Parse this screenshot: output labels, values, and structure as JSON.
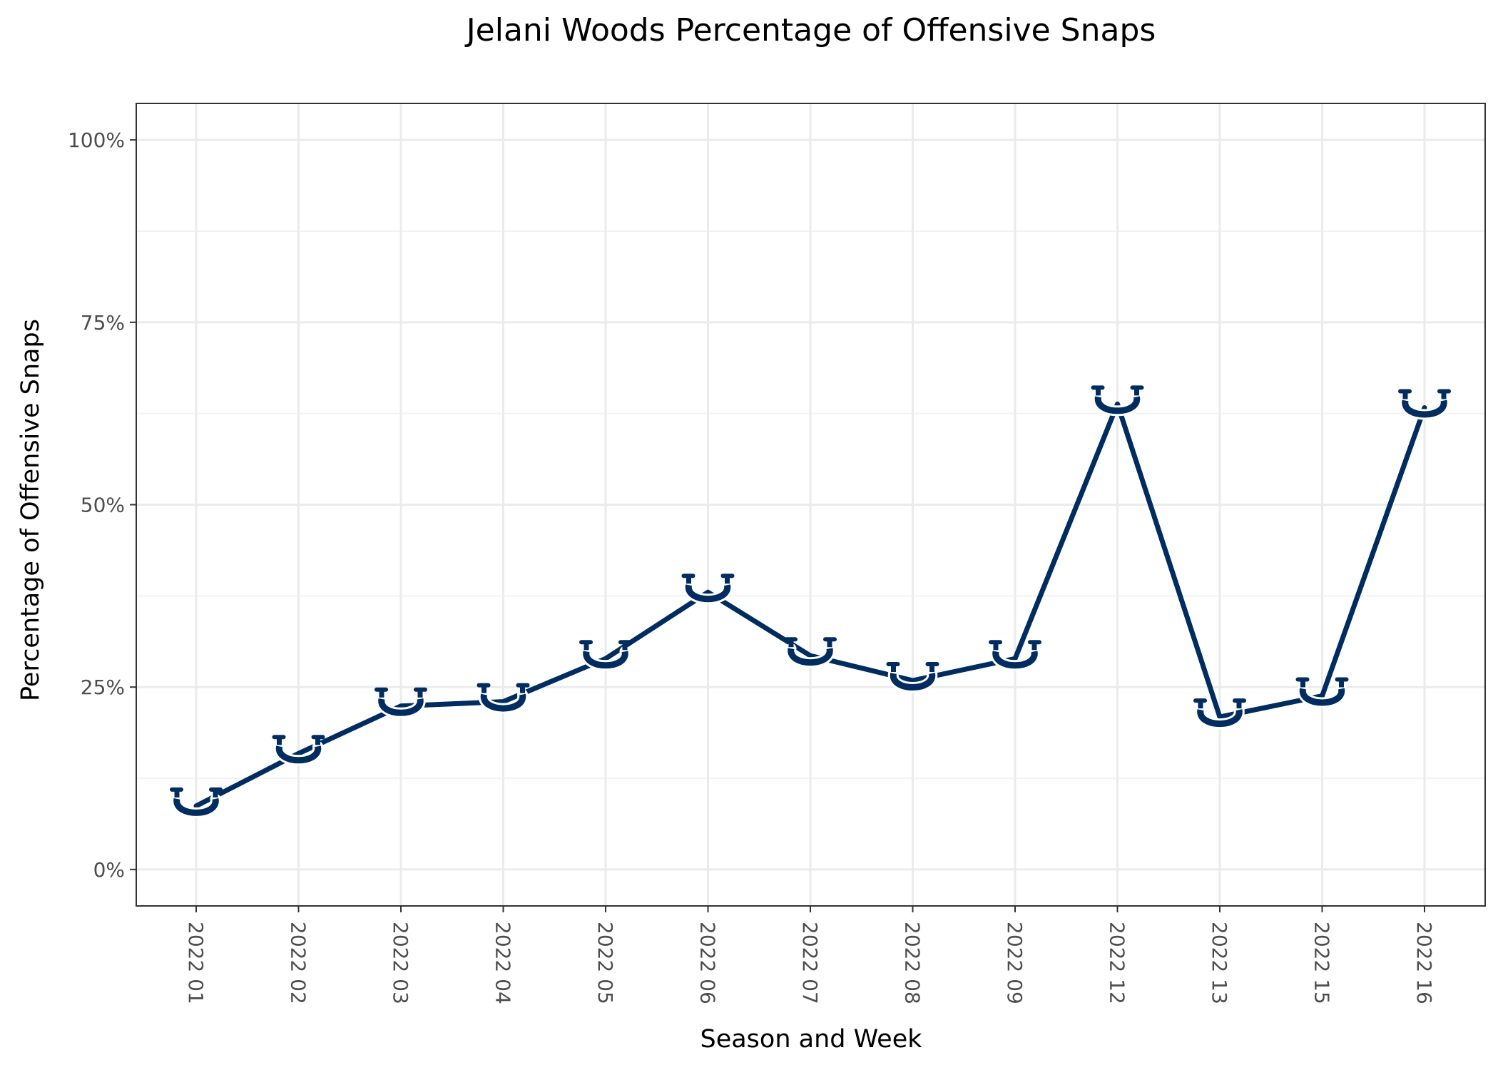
{
  "chart_data": {
    "type": "line",
    "title": "Jelani Woods Percentage of Offensive Snaps",
    "xlabel": "Season and Week",
    "ylabel": "Percentage of Offensive Snaps",
    "categories": [
      "2022 01",
      "2022 02",
      "2022 03",
      "2022 04",
      "2022 05",
      "2022 06",
      "2022 07",
      "2022 08",
      "2022 09",
      "2022 12",
      "2022 13",
      "2022 15",
      "2022 16"
    ],
    "values": [
      8.7,
      15.9,
      22.4,
      23.0,
      28.9,
      38.0,
      29.3,
      25.9,
      28.9,
      63.8,
      20.9,
      23.8,
      63.3
    ],
    "ylim": [
      -5,
      105
    ],
    "yticks": [
      0,
      25,
      50,
      75,
      100
    ],
    "ytick_labels": [
      "0%",
      "25%",
      "50%",
      "75%",
      "100%"
    ],
    "grid": true,
    "legend": "none",
    "marker": "horseshoe-icon",
    "colors": {
      "line": "#002C5F",
      "grid_major": "#EBEBEB",
      "grid_minor": "#F2F2F2",
      "panel_border": "#333333"
    }
  }
}
